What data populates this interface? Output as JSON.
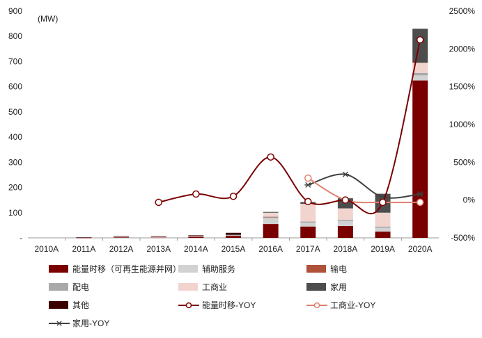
{
  "chart_data": {
    "type": "bar",
    "unit_label": "(MW)",
    "categories": [
      "2010A",
      "2011A",
      "2012A",
      "2013A",
      "2014A",
      "2015A",
      "2016A",
      "2017A",
      "2018A",
      "2019A",
      "2020A"
    ],
    "left_axis": {
      "range": [
        0,
        900
      ],
      "ticks": [
        "-",
        "100",
        "200",
        "300",
        "400",
        "500",
        "600",
        "700",
        "800",
        "900"
      ]
    },
    "right_axis": {
      "range": [
        -500,
        2500
      ],
      "ticks": [
        "-500%",
        "0%",
        "500%",
        "1000%",
        "1500%",
        "2000%",
        "2500%"
      ]
    },
    "stacked_series": [
      {
        "name": "能量时移（可再生能源并网）",
        "color": "#7a0000",
        "values": [
          0,
          1,
          3,
          2,
          5,
          8,
          55,
          45,
          47,
          25,
          625
        ]
      },
      {
        "name": "辅助服务",
        "color": "#d2d2d2",
        "values": [
          0,
          0,
          1,
          1,
          1,
          2,
          25,
          15,
          20,
          15,
          20
        ]
      },
      {
        "name": "输电",
        "color": "#b0523a",
        "values": [
          0,
          0,
          0,
          0,
          0,
          0,
          2,
          0,
          0,
          0,
          0
        ]
      },
      {
        "name": "配电",
        "color": "#a9a9a9",
        "values": [
          0,
          0,
          0,
          0,
          0,
          1,
          3,
          5,
          5,
          5,
          10
        ]
      },
      {
        "name": "工商业",
        "color": "#f2d4cf",
        "values": [
          0,
          0,
          1,
          1,
          1,
          1,
          15,
          70,
          45,
          55,
          40
        ]
      },
      {
        "name": "家用",
        "color": "#4d4d4d",
        "values": [
          0,
          0,
          0,
          0,
          0,
          1,
          3,
          7,
          40,
          75,
          135
        ]
      },
      {
        "name": "其他",
        "color": "#3a0000",
        "values": [
          0,
          1,
          2,
          2,
          3,
          7,
          0,
          0,
          0,
          0,
          0
        ]
      }
    ],
    "yoy_series": [
      {
        "name": "能量时移-YOY",
        "color": "#7a0000",
        "marker": "circle",
        "indices": [
          3,
          4,
          5,
          6,
          7,
          8,
          9,
          10
        ],
        "values": [
          -30,
          80,
          50,
          570,
          -20,
          0,
          -30,
          2120
        ]
      },
      {
        "name": "工商业-YOY",
        "color": "#e08070",
        "marker": "circle",
        "indices": [
          7,
          8,
          9,
          10
        ],
        "values": [
          290,
          0,
          -30,
          -30
        ]
      },
      {
        "name": "家用-YOY",
        "color": "#404040",
        "marker": "star",
        "indices": [
          7,
          8,
          9,
          10
        ],
        "values": [
          200,
          340,
          40,
          80
        ]
      }
    ],
    "legend_position": "bottom",
    "grid": false
  }
}
